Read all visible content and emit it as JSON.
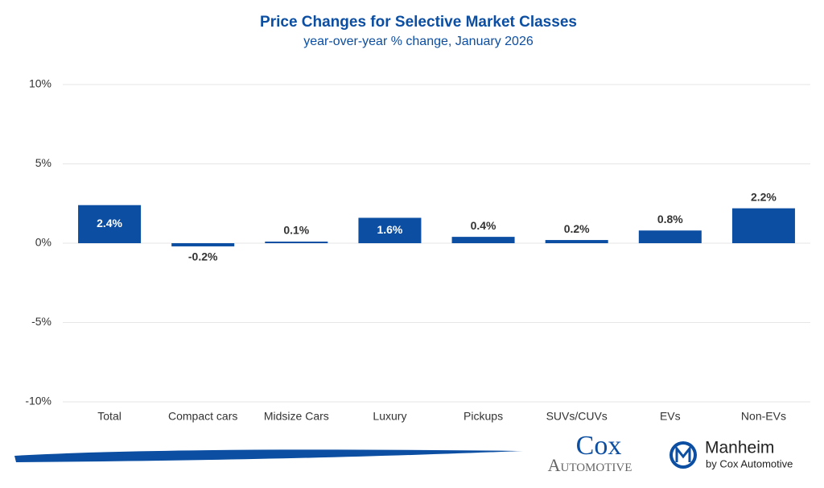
{
  "chart_data": {
    "type": "bar",
    "title": "Price Changes for Selective Market Classes",
    "subtitle": "year-over-year % change, January 2026",
    "categories": [
      "Total",
      "Compact cars",
      "Midsize Cars",
      "Luxury",
      "Pickups",
      "SUVs/CUVs",
      "EVs",
      "Non-EVs"
    ],
    "values": [
      2.4,
      -0.2,
      0.1,
      1.6,
      0.4,
      0.2,
      0.8,
      2.2
    ],
    "value_labels": [
      "2.4%",
      "-0.2%",
      "0.1%",
      "1.6%",
      "0.4%",
      "0.2%",
      "0.8%",
      "2.2%"
    ],
    "color": "#0b4ea2",
    "ylim": [
      -10,
      10
    ],
    "yticks": [
      {
        "value": -10,
        "label": "-10%"
      },
      {
        "value": -5,
        "label": "-5%"
      },
      {
        "value": 0,
        "label": "0%"
      },
      {
        "value": 5,
        "label": "5%"
      },
      {
        "value": 10,
        "label": "10%"
      }
    ],
    "grid": true
  },
  "logos": {
    "cox": "Cox",
    "automotive": "Automotive",
    "manheim": "Manheim",
    "manheim_sub": "by Cox Automotive"
  }
}
